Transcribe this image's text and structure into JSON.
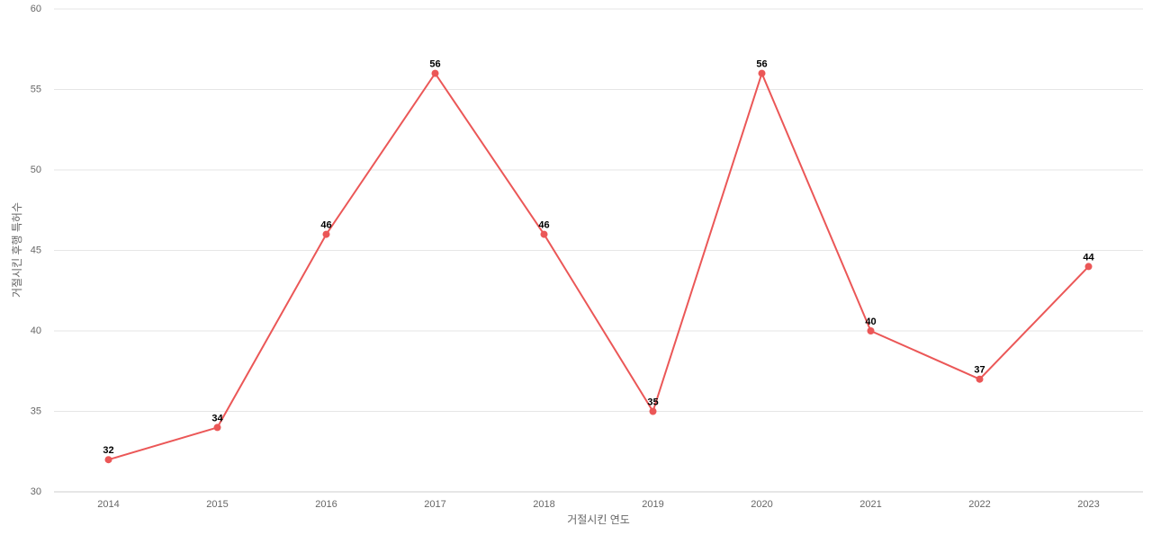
{
  "chart_data": {
    "type": "line",
    "x_label": "거절시킨 연도",
    "y_label": "거절시킨 후행 특허수",
    "categories": [
      "2014",
      "2015",
      "2016",
      "2017",
      "2018",
      "2019",
      "2020",
      "2021",
      "2022",
      "2023"
    ],
    "series": [
      {
        "color": "#eb5757",
        "values": [
          32,
          34,
          46,
          56,
          46,
          35,
          56,
          40,
          37,
          44
        ]
      }
    ],
    "ylim": [
      30,
      60
    ],
    "yticks": [
      30,
      35,
      40,
      45,
      50,
      55,
      60
    ],
    "grid": true
  }
}
